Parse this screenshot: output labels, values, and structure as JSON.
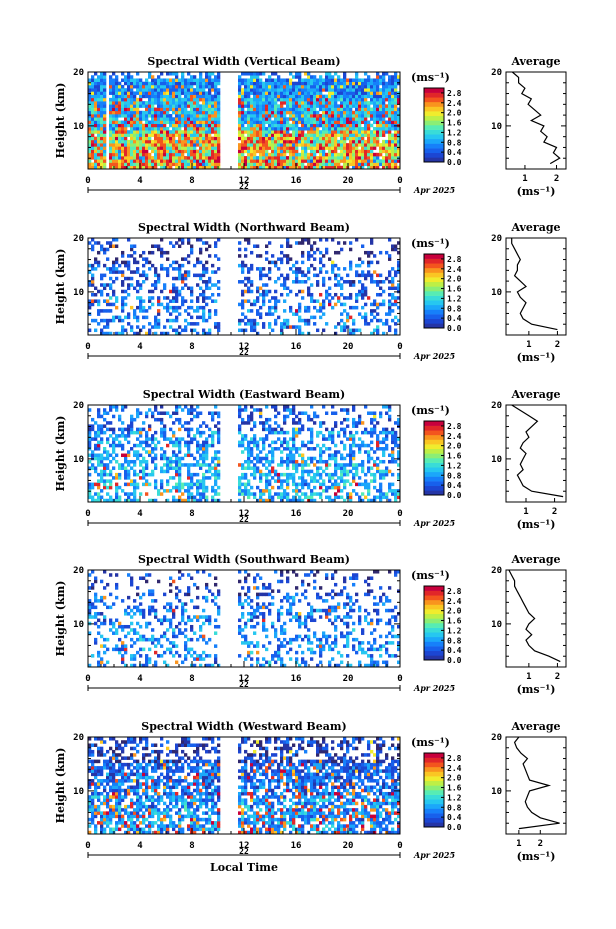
{
  "chart_data": [
    {
      "type": "heatmap",
      "title": "Spectral Width (Vertical Beam)",
      "ylabel": "Height (km)",
      "ylim": [
        2,
        20
      ],
      "yticks": [
        10,
        20
      ],
      "xticks": [
        "0",
        "4",
        "8",
        "12",
        "16",
        "20",
        "0"
      ],
      "xlim_hours": [
        0,
        24
      ],
      "day_label": "22",
      "date_label": "Apr 2025",
      "data_gap_hours": [
        10.2,
        11.5
      ],
      "colorbar": {
        "unit": "(ms⁻¹)",
        "ticks": [
          "2.8",
          "2.4",
          "2.0",
          "1.6",
          "1.2",
          "0.8",
          "0.4",
          "0.0"
        ],
        "range": [
          0,
          3.0
        ]
      },
      "profile": {
        "title": "Average",
        "xlabel": "(ms⁻¹)",
        "xticks": [
          "1",
          "2"
        ],
        "xlim": [
          0.4,
          2.3
        ],
        "heights": [
          3,
          4,
          5,
          6,
          7,
          8,
          9,
          10,
          11,
          12,
          13,
          14,
          15,
          16,
          17,
          18,
          19,
          20
        ],
        "values": [
          1.8,
          2.1,
          1.9,
          2.0,
          1.6,
          1.7,
          1.5,
          1.6,
          1.2,
          1.5,
          1.3,
          1.1,
          1.2,
          0.9,
          1.0,
          0.8,
          0.8,
          0.6
        ]
      }
    },
    {
      "type": "heatmap",
      "title": "Spectral Width (Northward Beam)",
      "ylabel": "Height (km)",
      "ylim": [
        2,
        20
      ],
      "yticks": [
        10,
        20
      ],
      "xticks": [
        "0",
        "4",
        "8",
        "12",
        "16",
        "20",
        "0"
      ],
      "xlim_hours": [
        0,
        24
      ],
      "day_label": "22",
      "date_label": "Apr 2025",
      "data_gap_hours": [
        10.2,
        11.5
      ],
      "colorbar": {
        "unit": "(ms⁻¹)",
        "ticks": [
          "2.8",
          "2.4",
          "2.0",
          "1.6",
          "1.2",
          "0.8",
          "0.4",
          "0.0"
        ],
        "range": [
          0,
          3.0
        ]
      },
      "profile": {
        "title": "Average",
        "xlabel": "(ms⁻¹)",
        "xticks": [
          "1",
          "2"
        ],
        "xlim": [
          0.2,
          2.3
        ],
        "heights": [
          3,
          4,
          5,
          6,
          7,
          8,
          9,
          10,
          11,
          12,
          13,
          14,
          15,
          16,
          17,
          18,
          19,
          20
        ],
        "values": [
          2.0,
          1.1,
          0.8,
          0.7,
          0.8,
          0.9,
          0.7,
          0.6,
          0.9,
          0.7,
          0.5,
          0.6,
          0.6,
          0.7,
          0.6,
          0.5,
          0.4,
          0.4
        ]
      }
    },
    {
      "type": "heatmap",
      "title": "Spectral Width (Eastward Beam)",
      "ylabel": "Height (km)",
      "ylim": [
        2,
        20
      ],
      "yticks": [
        10,
        20
      ],
      "xticks": [
        "0",
        "4",
        "8",
        "12",
        "16",
        "20",
        "0"
      ],
      "xlim_hours": [
        0,
        24
      ],
      "day_label": "22",
      "date_label": "Apr 2025",
      "data_gap_hours": [
        10.2,
        11.5
      ],
      "colorbar": {
        "unit": "(ms⁻¹)",
        "ticks": [
          "2.8",
          "2.4",
          "2.0",
          "1.6",
          "1.2",
          "0.8",
          "0.4",
          "0.0"
        ],
        "range": [
          0,
          3.0
        ]
      },
      "profile": {
        "title": "Average",
        "xlabel": "(ms⁻¹)",
        "xticks": [
          "1",
          "2"
        ],
        "xlim": [
          0.3,
          2.4
        ],
        "heights": [
          3,
          4,
          5,
          6,
          7,
          8,
          9,
          10,
          11,
          12,
          13,
          14,
          15,
          16,
          17,
          18,
          19,
          20
        ],
        "values": [
          2.3,
          1.2,
          0.9,
          0.8,
          0.7,
          0.9,
          0.8,
          0.9,
          1.0,
          0.8,
          0.9,
          1.1,
          1.0,
          1.2,
          1.4,
          1.1,
          0.8,
          0.5
        ]
      }
    },
    {
      "type": "heatmap",
      "title": "Spectral Width (Southward Beam)",
      "ylabel": "Height (km)",
      "ylim": [
        2,
        20
      ],
      "yticks": [
        10,
        20
      ],
      "xticks": [
        "0",
        "4",
        "8",
        "12",
        "16",
        "20",
        "0"
      ],
      "xlim_hours": [
        0,
        24
      ],
      "day_label": "22",
      "date_label": "Apr 2025",
      "data_gap_hours": [
        10.2,
        11.5
      ],
      "colorbar": {
        "unit": "(ms⁻¹)",
        "ticks": [
          "2.8",
          "2.4",
          "2.0",
          "1.6",
          "1.2",
          "0.8",
          "0.4",
          "0.0"
        ],
        "range": [
          0,
          3.0
        ]
      },
      "profile": {
        "title": "Average",
        "xlabel": "(ms⁻¹)",
        "xticks": [
          "1",
          "2"
        ],
        "xlim": [
          0.2,
          2.3
        ],
        "heights": [
          3,
          4,
          5,
          6,
          7,
          8,
          9,
          10,
          11,
          12,
          13,
          14,
          15,
          16,
          17,
          18,
          19,
          20
        ],
        "values": [
          2.1,
          1.7,
          1.2,
          1.0,
          0.9,
          1.1,
          0.9,
          1.0,
          1.2,
          1.0,
          0.9,
          0.8,
          0.7,
          0.6,
          0.5,
          0.5,
          0.4,
          0.3
        ]
      }
    },
    {
      "type": "heatmap",
      "title": "Spectral Width (Westward Beam)",
      "ylabel": "Height (km)",
      "xlabel": "Local Time",
      "ylim": [
        2,
        20
      ],
      "yticks": [
        10,
        20
      ],
      "xticks": [
        "0",
        "4",
        "8",
        "12",
        "16",
        "20",
        "0"
      ],
      "xlim_hours": [
        0,
        24
      ],
      "day_label": "22",
      "date_label": "Apr 2025",
      "data_gap_hours": [
        10.2,
        11.5
      ],
      "colorbar": {
        "unit": "(ms⁻¹)",
        "ticks": [
          "2.8",
          "2.4",
          "2.0",
          "1.6",
          "1.2",
          "0.8",
          "0.4",
          "0.0"
        ],
        "range": [
          0,
          3.0
        ]
      },
      "profile": {
        "title": "Average",
        "xlabel": "(ms⁻¹)",
        "xticks": [
          "1",
          "2"
        ],
        "xlim": [
          0.4,
          3.2
        ],
        "heights": [
          3,
          4,
          5,
          6,
          7,
          8,
          9,
          10,
          11,
          12,
          13,
          14,
          15,
          16,
          17,
          18,
          19,
          20
        ],
        "values": [
          1.0,
          2.9,
          2.0,
          1.6,
          1.4,
          1.3,
          1.4,
          1.5,
          2.4,
          1.5,
          1.4,
          1.3,
          1.2,
          1.4,
          1.1,
          0.9,
          0.8,
          1.0
        ]
      }
    }
  ]
}
